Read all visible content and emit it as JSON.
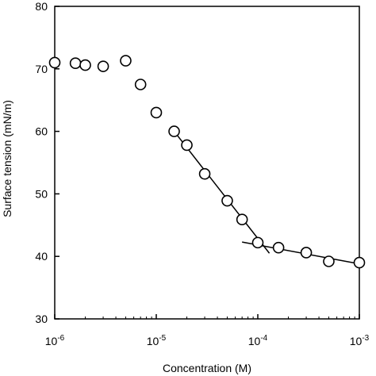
{
  "chart_data": {
    "type": "scatter",
    "xlabel": "Concentration (M)",
    "ylabel": "Surface tension (mN/m)",
    "x_scale": "log",
    "xlim": [
      1e-06,
      0.001
    ],
    "ylim": [
      30,
      80
    ],
    "x_ticks": [
      {
        "base": "10",
        "exp": "-6",
        "value": 1e-06
      },
      {
        "base": "10",
        "exp": "-5",
        "value": 1e-05
      },
      {
        "base": "10",
        "exp": "-4",
        "value": 0.0001
      },
      {
        "base": "10",
        "exp": "-3",
        "value": 0.001
      }
    ],
    "y_ticks": [
      "30",
      "40",
      "50",
      "60",
      "70",
      "80"
    ],
    "grid": false,
    "legend": "none",
    "marker": {
      "shape": "circle",
      "fill": "#ffffff",
      "stroke": "#000000"
    },
    "points": [
      {
        "x": 1e-06,
        "y": 71.0
      },
      {
        "x": 1.6e-06,
        "y": 70.9
      },
      {
        "x": 2e-06,
        "y": 70.6
      },
      {
        "x": 3e-06,
        "y": 70.4
      },
      {
        "x": 5e-06,
        "y": 71.3
      },
      {
        "x": 7e-06,
        "y": 67.5
      },
      {
        "x": 1e-05,
        "y": 63.0
      },
      {
        "x": 1.5e-05,
        "y": 60.0
      },
      {
        "x": 2e-05,
        "y": 57.8
      },
      {
        "x": 3e-05,
        "y": 53.2
      },
      {
        "x": 5e-05,
        "y": 48.9
      },
      {
        "x": 7e-05,
        "y": 45.9
      },
      {
        "x": 0.0001,
        "y": 42.2
      },
      {
        "x": 0.00016,
        "y": 41.4
      },
      {
        "x": 0.0003,
        "y": 40.6
      },
      {
        "x": 0.0005,
        "y": 39.2
      },
      {
        "x": 0.001,
        "y": 39.0
      }
    ],
    "fit_lines": [
      {
        "name": "",
        "points": [
          {
            "x": 1.5e-05,
            "y": 60.0
          },
          {
            "x": 0.00013,
            "y": 40.5
          }
        ]
      },
      {
        "name": "",
        "points": [
          {
            "x": 7e-05,
            "y": 42.3
          },
          {
            "x": 0.001,
            "y": 38.8
          }
        ]
      }
    ]
  }
}
